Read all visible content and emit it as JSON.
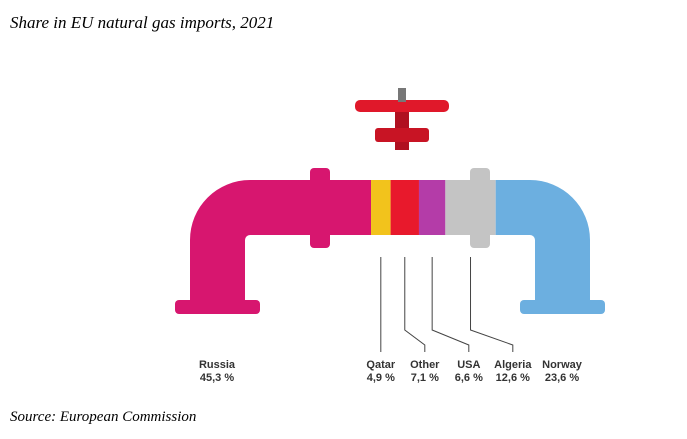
{
  "chart_data": {
    "type": "pipe",
    "title": "Share in EU natural gas imports, 2021",
    "source": "Source: European Commission",
    "categories": [
      "Russia",
      "Qatar",
      "Other",
      "USA",
      "Algeria",
      "Norway"
    ],
    "values": [
      45.3,
      4.9,
      7.1,
      6.6,
      12.6,
      23.6
    ],
    "value_labels": [
      "45,3 %",
      "4,9 %",
      "7,1 %",
      "6,6 %",
      "12,6 %",
      "23,6 %"
    ],
    "colors": [
      "#d7166f",
      "#f2c31c",
      "#e8192c",
      "#b43ca8",
      "#c4c4c4",
      "#6cafe0"
    ]
  }
}
